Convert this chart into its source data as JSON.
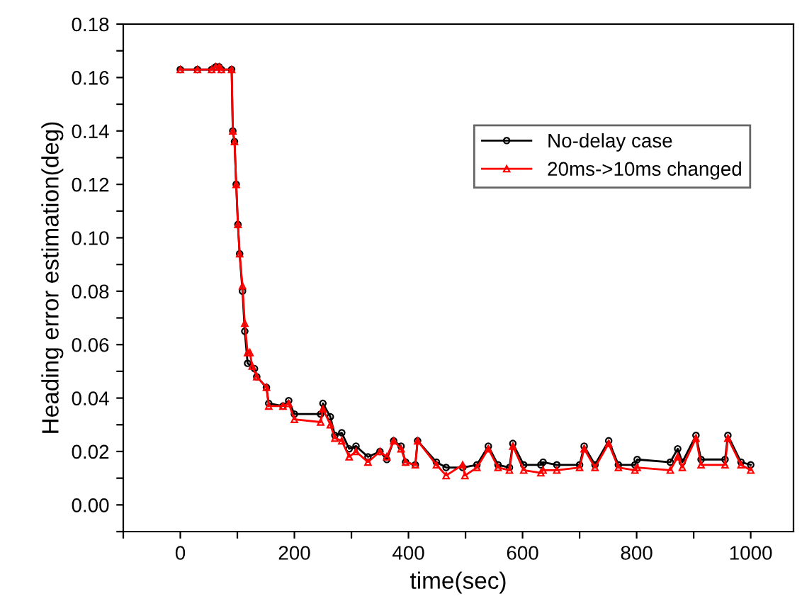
{
  "chart_data": {
    "type": "line",
    "xlabel": "time(sec)",
    "ylabel": "Heading error estimation(deg)",
    "xlim": [
      -100,
      1075
    ],
    "ylim": [
      -0.01,
      0.18
    ],
    "xticks": [
      {
        "value": -100,
        "label": null
      },
      0,
      {
        "value": 100,
        "label": null
      },
      200,
      {
        "value": 300,
        "label": null
      },
      400,
      {
        "value": 500,
        "label": null
      },
      600,
      {
        "value": 700,
        "label": null
      },
      800,
      {
        "value": 900,
        "label": null
      },
      1000
    ],
    "yticks": [
      {
        "value": -0.01,
        "label": null
      },
      {
        "value": 0,
        "label": "0.00"
      },
      {
        "value": 0.01,
        "label": null
      },
      {
        "value": 0.02,
        "label": "0.02"
      },
      {
        "value": 0.03,
        "label": null
      },
      {
        "value": 0.04,
        "label": "0.04"
      },
      {
        "value": 0.05,
        "label": null
      },
      {
        "value": 0.06,
        "label": "0.06"
      },
      {
        "value": 0.07,
        "label": null
      },
      {
        "value": 0.08,
        "label": "0.08"
      },
      {
        "value": 0.09,
        "label": null
      },
      {
        "value": 0.1,
        "label": "0.10"
      },
      {
        "value": 0.11,
        "label": null
      },
      {
        "value": 0.12,
        "label": "0.12"
      },
      {
        "value": 0.13,
        "label": null
      },
      {
        "value": 0.14,
        "label": "0.14"
      },
      {
        "value": 0.15,
        "label": null
      },
      {
        "value": 0.16,
        "label": "0.16"
      },
      {
        "value": 0.17,
        "label": null
      },
      {
        "value": 0.18,
        "label": "0.18"
      }
    ],
    "grid": false,
    "legend": "top right",
    "line_style": "solid",
    "series": [
      {
        "name": "No-delay case",
        "color": "#000000",
        "marker": "circle",
        "x": [
          0,
          30,
          55,
          62,
          68,
          72,
          90,
          92,
          95,
          98,
          101,
          104,
          109,
          113,
          118,
          130,
          134,
          151,
          155,
          180,
          190,
          200,
          246,
          250,
          263,
          271,
          283,
          296,
          308,
          329,
          350,
          362,
          374,
          387,
          395,
          412,
          416,
          449,
          466,
          495,
          520,
          540,
          557,
          577,
          583,
          602,
          632,
          636,
          660,
          700,
          708,
          727,
          751,
          768,
          797,
          801,
          859,
          872,
          880,
          904,
          913,
          955,
          960,
          983,
          1000
        ],
        "values": [
          0.163,
          0.163,
          0.163,
          0.164,
          0.164,
          0.163,
          0.163,
          0.14,
          0.136,
          0.12,
          0.105,
          0.094,
          0.08,
          0.065,
          0.053,
          0.051,
          0.048,
          0.044,
          0.038,
          0.037,
          0.039,
          0.034,
          0.034,
          0.038,
          0.033,
          0.026,
          0.027,
          0.021,
          0.022,
          0.018,
          0.02,
          0.017,
          0.024,
          0.022,
          0.016,
          0.015,
          0.024,
          0.016,
          0.014,
          0.014,
          0.015,
          0.022,
          0.015,
          0.014,
          0.023,
          0.015,
          0.015,
          0.016,
          0.015,
          0.015,
          0.022,
          0.015,
          0.024,
          0.015,
          0.015,
          0.017,
          0.016,
          0.021,
          0.016,
          0.026,
          0.017,
          0.017,
          0.026,
          0.016,
          0.015
        ]
      },
      {
        "name": "20ms->10ms changed",
        "color": "#ff0000",
        "marker": "triangle",
        "x": [
          0,
          30,
          55,
          62,
          68,
          72,
          90,
          92,
          95,
          98,
          101,
          104,
          109,
          113,
          118,
          122,
          126,
          134,
          151,
          155,
          180,
          190,
          200,
          246,
          250,
          263,
          271,
          283,
          296,
          308,
          329,
          350,
          362,
          374,
          387,
          395,
          412,
          416,
          449,
          466,
          495,
          499,
          520,
          540,
          557,
          577,
          583,
          602,
          632,
          636,
          660,
          700,
          708,
          727,
          751,
          768,
          797,
          801,
          859,
          872,
          880,
          904,
          913,
          955,
          960,
          983,
          1000
        ],
        "values": [
          0.163,
          0.163,
          0.163,
          0.164,
          0.164,
          0.163,
          0.163,
          0.14,
          0.136,
          0.12,
          0.105,
          0.094,
          0.082,
          0.068,
          0.057,
          0.057,
          0.052,
          0.048,
          0.044,
          0.037,
          0.037,
          0.038,
          0.032,
          0.031,
          0.036,
          0.03,
          0.025,
          0.024,
          0.018,
          0.02,
          0.016,
          0.02,
          0.018,
          0.024,
          0.021,
          0.016,
          0.015,
          0.024,
          0.015,
          0.011,
          0.015,
          0.011,
          0.014,
          0.021,
          0.014,
          0.013,
          0.022,
          0.013,
          0.012,
          0.013,
          0.013,
          0.014,
          0.021,
          0.014,
          0.023,
          0.014,
          0.013,
          0.014,
          0.013,
          0.018,
          0.014,
          0.025,
          0.015,
          0.015,
          0.025,
          0.015,
          0.013
        ]
      }
    ]
  }
}
